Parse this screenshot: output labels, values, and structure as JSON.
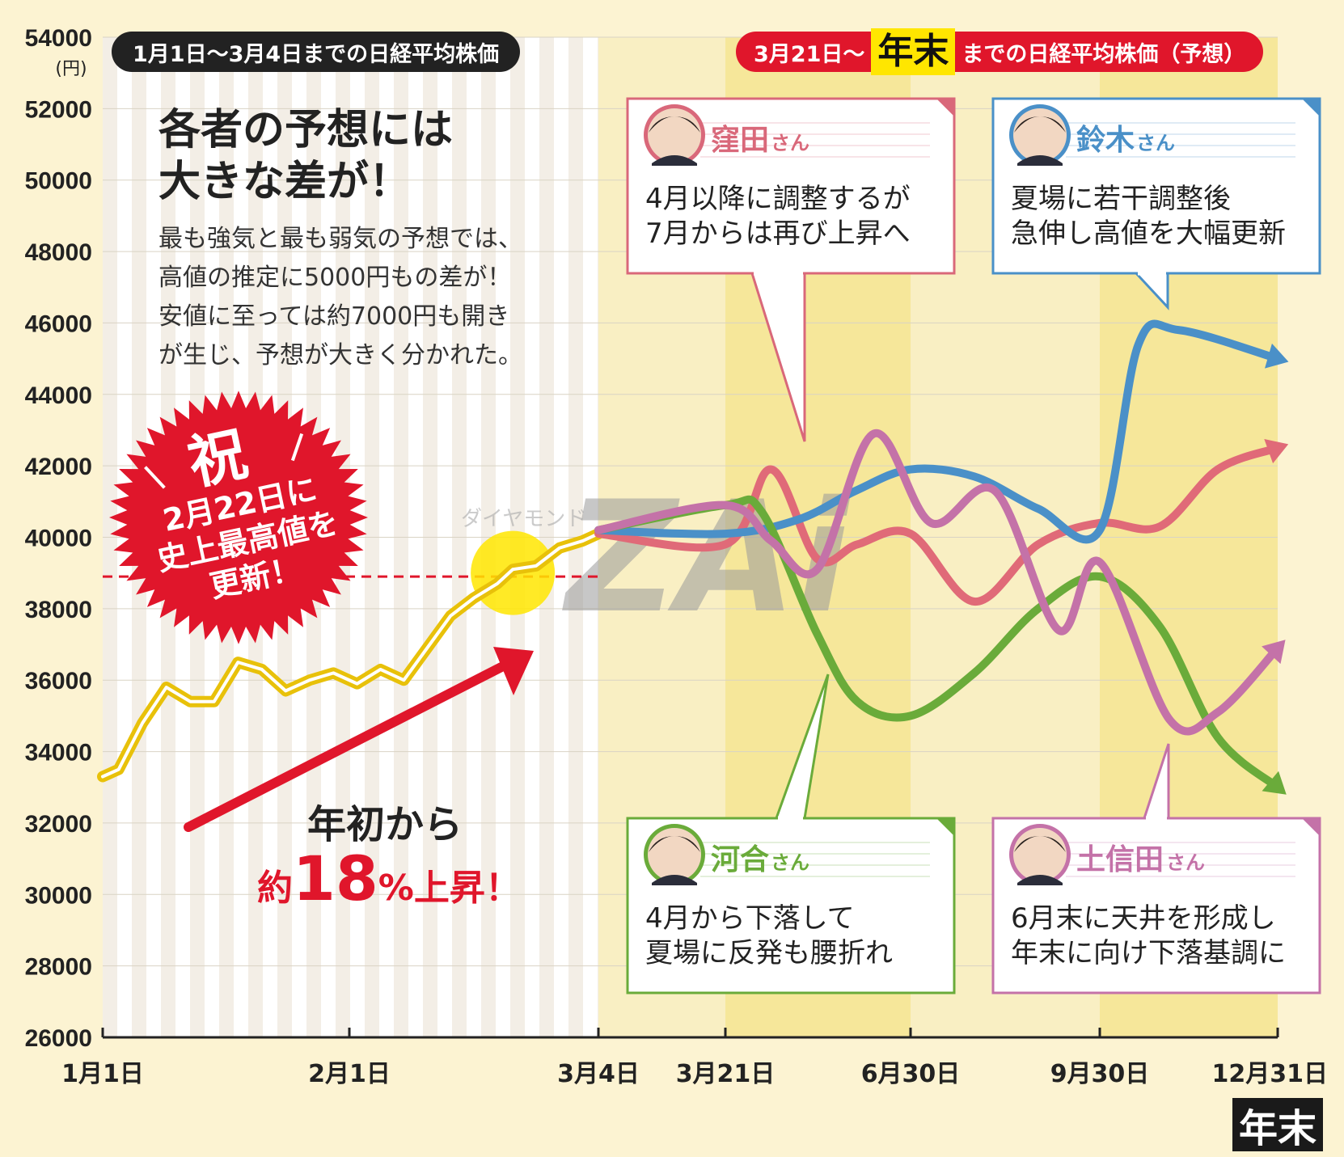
{
  "chart_data": {
    "type": "line",
    "y_unit": "(円)",
    "ylim": [
      26000,
      54000
    ],
    "y_ticks": [
      "54000",
      "52000",
      "50000",
      "48000",
      "46000",
      "44000",
      "42000",
      "40000",
      "38000",
      "36000",
      "34000",
      "32000",
      "30000",
      "28000",
      "26000"
    ],
    "x_labels": [
      "1月1日",
      "2月1日",
      "3月4日",
      "3月21日",
      "6月30日",
      "9月30日",
      "12月31日"
    ],
    "record_high_level": 38900,
    "series": [
      {
        "name": "1月1日〜3月4日までの日経平均株価",
        "color": "#e8c10a",
        "x": [
          "1月1日",
          "1月3日",
          "1月6日",
          "1月9日",
          "1月12日",
          "1月15日",
          "1月18日",
          "1月21日",
          "1月24日",
          "1月27日",
          "1月30日",
          "2月2日",
          "2月5日",
          "2月8日",
          "2月11日",
          "2月14日",
          "2月17日",
          "2月20日",
          "2月22日",
          "2月25日",
          "2月28日",
          "3月2日",
          "3月4日"
        ],
        "values": [
          33300,
          33500,
          34800,
          35800,
          35400,
          35400,
          36500,
          36300,
          35700,
          36000,
          36200,
          35900,
          36300,
          36000,
          36900,
          37800,
          38300,
          38700,
          39100,
          39200,
          39700,
          39900,
          40100
        ]
      },
      {
        "name": "窪田さん",
        "color": "#e06a78",
        "x": [
          "3月4日",
          "3月21日",
          "4月15日",
          "5月10日",
          "6月1日",
          "6月30日",
          "7月31日",
          "8月31日",
          "9月30日",
          "10月31日",
          "11月30日",
          "12月31日"
        ],
        "values": [
          40100,
          39800,
          41900,
          39400,
          39800,
          40100,
          38200,
          39800,
          40400,
          40300,
          41900,
          42500
        ]
      },
      {
        "name": "鈴木さん",
        "color": "#4a90c8",
        "x": [
          "3月4日",
          "3月21日",
          "4月30日",
          "5月31日",
          "6月30日",
          "7月31日",
          "8月31日",
          "9月30日",
          "10月20日",
          "11月10日",
          "12月31日"
        ],
        "values": [
          40200,
          40100,
          40500,
          41300,
          41900,
          41700,
          40800,
          40200,
          45400,
          45800,
          45000
        ]
      },
      {
        "name": "河合さん",
        "color": "#6aab3a",
        "x": [
          "3月4日",
          "3月21日",
          "4月10日",
          "5月10日",
          "6月1日",
          "6月30日",
          "7月31日",
          "8月31日",
          "9月30日",
          "10月31日",
          "11月30日",
          "12月31日"
        ],
        "values": [
          40200,
          40900,
          40700,
          37300,
          35400,
          35000,
          36200,
          38000,
          38900,
          37500,
          34400,
          33000
        ]
      },
      {
        "name": "土信田さん",
        "color": "#c472a8",
        "x": [
          "3月4日",
          "3月21日",
          "4月15日",
          "5月10日",
          "6月10日",
          "7月10日",
          "8月10日",
          "9月10日",
          "9月30日",
          "11月5日",
          "11月30日",
          "12月31日"
        ],
        "values": [
          40200,
          40900,
          39900,
          39100,
          42900,
          40400,
          41300,
          37400,
          39300,
          34900,
          35100,
          36900
        ]
      }
    ]
  },
  "banners": {
    "left": "1月1日〜3月4日までの日経平均株価",
    "right_prefix": "3月21日〜",
    "right_highlight": "年末",
    "right_suffix": "までの日経平均株価（予想）"
  },
  "headline": {
    "title_line1": "各者の予想には",
    "title_line2": "大きな差が！",
    "body": [
      "最も強気と最も弱気の予想では、",
      "高値の推定に5000円もの差が！",
      "安値に至っては約7000円も開き",
      "が生じ、予想が大きく分かれた。"
    ]
  },
  "burst": {
    "kanji": "祝",
    "line1": "2月22日に",
    "line2": "史上最高値を",
    "line3": "更新！"
  },
  "rise_note": {
    "line1": "年初から",
    "pre": "約",
    "num": "18",
    "post": "%上昇！"
  },
  "callouts": [
    {
      "id": "kubota",
      "name": "窪田",
      "suffix": "さん",
      "line1": "4月以降に調整するが",
      "line2": "7月からは再び上昇へ",
      "color": "#d9687a"
    },
    {
      "id": "suzuki",
      "name": "鈴木",
      "suffix": "さん",
      "line1": "夏場に若干調整後",
      "line2": "急伸し高値を大幅更新",
      "color": "#4a90c8"
    },
    {
      "id": "kawai",
      "name": "河合",
      "suffix": "さん",
      "line1": "4月から下落して",
      "line2": "夏場に反発も腰折れ",
      "color": "#6aab3a"
    },
    {
      "id": "toshida",
      "name": "土信田",
      "suffix": "さん",
      "line1": "6月末に天井を形成し",
      "line2": "年末に向け下落基調に",
      "color": "#c472a8"
    }
  ],
  "watermark": {
    "small": "ダイヤモンド",
    "big": "ZAi"
  },
  "year_end_badge": "年末"
}
